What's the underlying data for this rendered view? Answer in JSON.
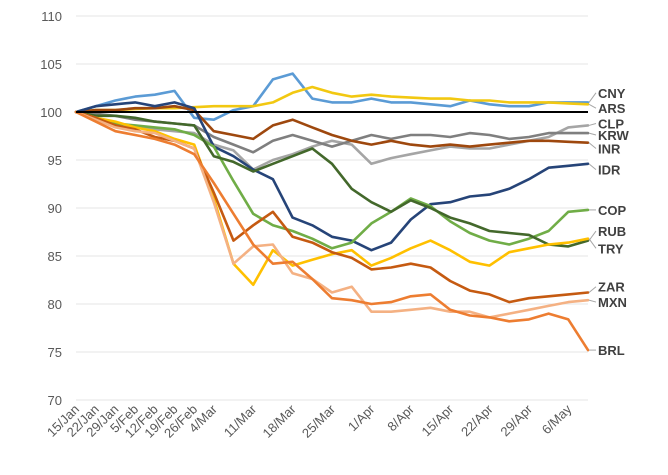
{
  "chart_data": {
    "type": "line",
    "title": "",
    "xlabel": "",
    "ylabel": "",
    "ylim": [
      70,
      110
    ],
    "yticks": [
      70,
      75,
      80,
      85,
      90,
      95,
      100,
      105,
      110
    ],
    "grid": "horizontal",
    "legend": "labels at right end of lines",
    "x_ticks": [
      "15/Jan",
      "22/Jan",
      "29/Jan",
      "5/Feb",
      "12/Feb",
      "19/Feb",
      "26/Feb",
      "4/Mar",
      "11/Mar",
      "18/Mar",
      "25/Mar",
      "1/Apr",
      "8/Apr",
      "15/Apr",
      "22/Apr",
      "29/Apr",
      "6/May"
    ],
    "x": [
      "15/Jan",
      "22/Jan",
      "29/Jan",
      "5/Feb",
      "12/Feb",
      "19/Feb",
      "26/Feb",
      "4/Mar",
      "8/Mar",
      "11/Mar",
      "15/Mar",
      "18/Mar",
      "22/Mar",
      "25/Mar",
      "29/Mar",
      "1/Apr",
      "5/Apr",
      "8/Apr",
      "12/Apr",
      "15/Apr",
      "19/Apr",
      "22/Apr",
      "26/Apr",
      "29/Apr",
      "3/May",
      "6/May",
      "10/May"
    ],
    "reference_line": 100,
    "series": [
      {
        "name": "CNY",
        "color": "#5b9bd5",
        "values": [
          100,
          100.6,
          101.2,
          101.6,
          101.8,
          102.2,
          99.4,
          99.2,
          100.2,
          100.6,
          103.4,
          104.0,
          101.4,
          101.0,
          101.0,
          101.4,
          101.0,
          101.0,
          100.8,
          100.6,
          101.2,
          100.8,
          100.6,
          100.6,
          101.0,
          101.0,
          101.0
        ]
      },
      {
        "name": "ARS",
        "color": "#f2c811",
        "values": [
          100,
          100.2,
          100.2,
          100.3,
          100.4,
          100.4,
          100.5,
          100.6,
          100.6,
          100.6,
          101.0,
          102.0,
          102.6,
          102.0,
          101.6,
          101.8,
          101.6,
          101.5,
          101.4,
          101.4,
          101.2,
          101.2,
          101.0,
          101.0,
          101.0,
          100.9,
          100.8
        ]
      },
      {
        "name": "CLP",
        "color": "#a5a5a5",
        "values": [
          100,
          99.4,
          98.6,
          98.4,
          98.2,
          98.0,
          97.8,
          96.6,
          96.0,
          94.0,
          95.0,
          95.6,
          96.4,
          97.0,
          96.6,
          94.6,
          95.2,
          95.6,
          96.0,
          96.4,
          96.2,
          96.2,
          96.6,
          97.0,
          97.4,
          98.4,
          98.6
        ]
      },
      {
        "name": "KRW",
        "color": "#7f7f7f",
        "values": [
          100,
          99.8,
          99.6,
          99.2,
          99.0,
          98.8,
          98.6,
          97.4,
          96.6,
          95.8,
          97.0,
          97.6,
          97.0,
          96.4,
          97.0,
          97.6,
          97.2,
          97.6,
          97.6,
          97.4,
          97.8,
          97.6,
          97.2,
          97.4,
          97.8,
          97.8,
          97.8
        ]
      },
      {
        "name": "INR",
        "color": "#9e480e",
        "values": [
          100,
          100.2,
          100.2,
          100.4,
          100.4,
          100.6,
          100.2,
          98.0,
          97.6,
          97.2,
          98.6,
          99.2,
          98.4,
          97.6,
          97.0,
          96.6,
          97.0,
          96.6,
          96.4,
          96.6,
          96.4,
          96.6,
          96.8,
          97.0,
          97.0,
          96.9,
          96.8
        ]
      },
      {
        "name": "IDR",
        "color": "#264478",
        "values": [
          100,
          100.6,
          100.8,
          101.0,
          100.6,
          101.0,
          100.4,
          96.4,
          95.4,
          94.0,
          93.0,
          89.0,
          88.2,
          87.0,
          86.6,
          85.6,
          86.4,
          88.8,
          90.4,
          90.6,
          91.2,
          91.4,
          92.0,
          93.0,
          94.2,
          94.4,
          94.6
        ]
      },
      {
        "name": "COP",
        "color": "#70ad47",
        "values": [
          100,
          99.2,
          98.8,
          98.6,
          98.4,
          98.2,
          97.6,
          96.4,
          92.8,
          89.4,
          88.2,
          87.6,
          86.8,
          85.8,
          86.4,
          88.4,
          89.6,
          91.0,
          90.2,
          88.6,
          87.4,
          86.6,
          86.2,
          86.8,
          87.6,
          89.6,
          89.8
        ]
      },
      {
        "name": "RUB",
        "color": "#43682b",
        "values": [
          100,
          99.6,
          99.6,
          99.4,
          99.0,
          98.8,
          98.6,
          95.4,
          94.8,
          93.8,
          94.6,
          95.4,
          96.2,
          94.6,
          92.0,
          90.6,
          89.6,
          90.8,
          90.0,
          89.0,
          88.4,
          87.6,
          87.4,
          87.2,
          86.2,
          86.0,
          86.6
        ]
      },
      {
        "name": "TRY",
        "color": "#ffc000",
        "values": [
          100,
          99.4,
          99.0,
          98.4,
          98.0,
          97.2,
          96.6,
          91.0,
          84.2,
          82.0,
          85.6,
          84.0,
          84.6,
          85.2,
          85.6,
          84.0,
          84.8,
          85.8,
          86.6,
          85.6,
          84.4,
          84.0,
          85.4,
          85.8,
          86.2,
          86.4,
          86.8
        ]
      },
      {
        "name": "ZAR",
        "color": "#c55a11",
        "values": [
          100,
          99.4,
          98.6,
          98.2,
          97.4,
          97.0,
          96.2,
          91.6,
          86.6,
          88.2,
          89.6,
          87.0,
          86.4,
          85.4,
          84.8,
          83.6,
          83.8,
          84.2,
          83.8,
          82.4,
          81.4,
          81.0,
          80.2,
          80.6,
          80.8,
          81.0,
          81.2
        ]
      },
      {
        "name": "MXN",
        "color": "#f4b183",
        "values": [
          100,
          99.2,
          98.4,
          98.0,
          97.8,
          97.0,
          96.2,
          90.6,
          84.2,
          86.0,
          86.2,
          83.2,
          82.6,
          81.2,
          81.8,
          79.2,
          79.2,
          79.4,
          79.6,
          79.2,
          79.2,
          78.6,
          79.0,
          79.4,
          79.8,
          80.2,
          80.4
        ]
      },
      {
        "name": "BRL",
        "color": "#ed7d31",
        "values": [
          100,
          99.0,
          98.0,
          97.6,
          97.2,
          96.6,
          95.6,
          92.6,
          89.4,
          86.2,
          84.2,
          84.4,
          82.6,
          80.6,
          80.4,
          80.0,
          80.2,
          80.8,
          81.0,
          79.4,
          78.8,
          78.6,
          78.2,
          78.4,
          79.0,
          78.4,
          75.2
        ]
      }
    ],
    "end_labels": [
      {
        "name": "CNY",
        "color": "#404040",
        "target": 102
      },
      {
        "name": "ARS",
        "color": "#404040",
        "target": 100.4
      },
      {
        "name": "CLP",
        "color": "#404040",
        "target": 98.8
      },
      {
        "name": "KRW",
        "color": "#404040",
        "target": 97.6
      },
      {
        "name": "INR",
        "color": "#404040",
        "target": 96.2
      },
      {
        "name": "IDR",
        "color": "#404040",
        "target": 94.0
      },
      {
        "name": "COP",
        "color": "#404040",
        "target": 89.8
      },
      {
        "name": "RUB",
        "color": "#404040",
        "target": 87.6
      },
      {
        "name": "TRY",
        "color": "#404040",
        "target": 85.8
      },
      {
        "name": "ZAR",
        "color": "#404040",
        "target": 81.8
      },
      {
        "name": "MXN",
        "color": "#404040",
        "target": 80.2
      },
      {
        "name": "BRL",
        "color": "#404040",
        "target": 75.2
      }
    ]
  }
}
